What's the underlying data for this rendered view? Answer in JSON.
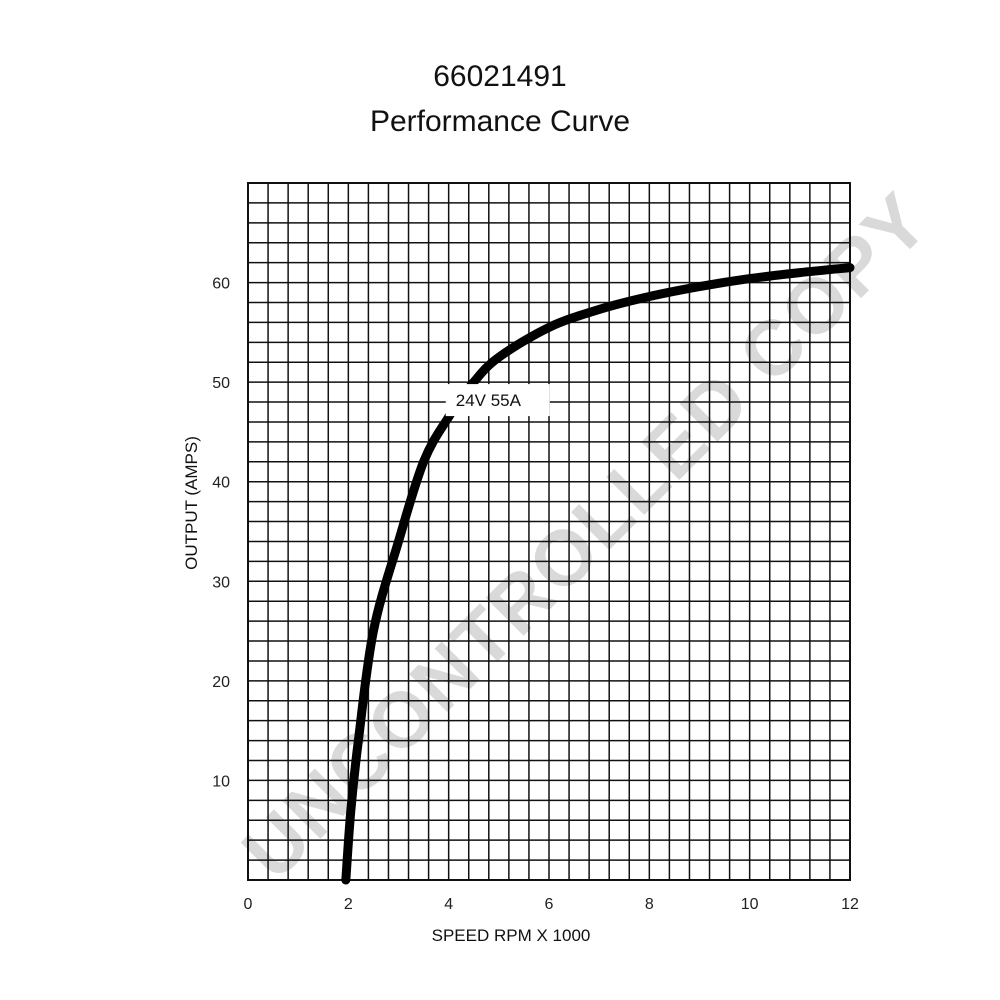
{
  "chart_data": {
    "type": "line",
    "title": "66021491",
    "subtitle": "Performance Curve",
    "xlabel": "SPEED RPM X 1000",
    "ylabel": "OUTPUT (AMPS)",
    "xlim": [
      0,
      12
    ],
    "ylim": [
      0,
      70
    ],
    "grid": true,
    "x_ticks": [
      "0",
      "2",
      "4",
      "6",
      "8",
      "10",
      "12"
    ],
    "y_ticks": [
      "10",
      "20",
      "30",
      "40",
      "50",
      "60"
    ],
    "series": [
      {
        "name": "24V 55A",
        "x": [
          1.95,
          2.05,
          2.2,
          2.5,
          3.0,
          3.5,
          4.0,
          4.5,
          5.0,
          6.0,
          7.0,
          8.0,
          9.0,
          10.0,
          11.0,
          12.0
        ],
        "y": [
          0,
          7,
          14,
          25,
          34,
          42,
          46.5,
          50,
          52.5,
          55.5,
          57.3,
          58.6,
          59.6,
          60.4,
          61.0,
          61.5
        ]
      }
    ],
    "colors": {
      "curve": "#000000",
      "grid": "#111111",
      "watermark": "#d9d9d9"
    }
  },
  "watermark": {
    "text": "UNCONTROLLED COPY"
  }
}
